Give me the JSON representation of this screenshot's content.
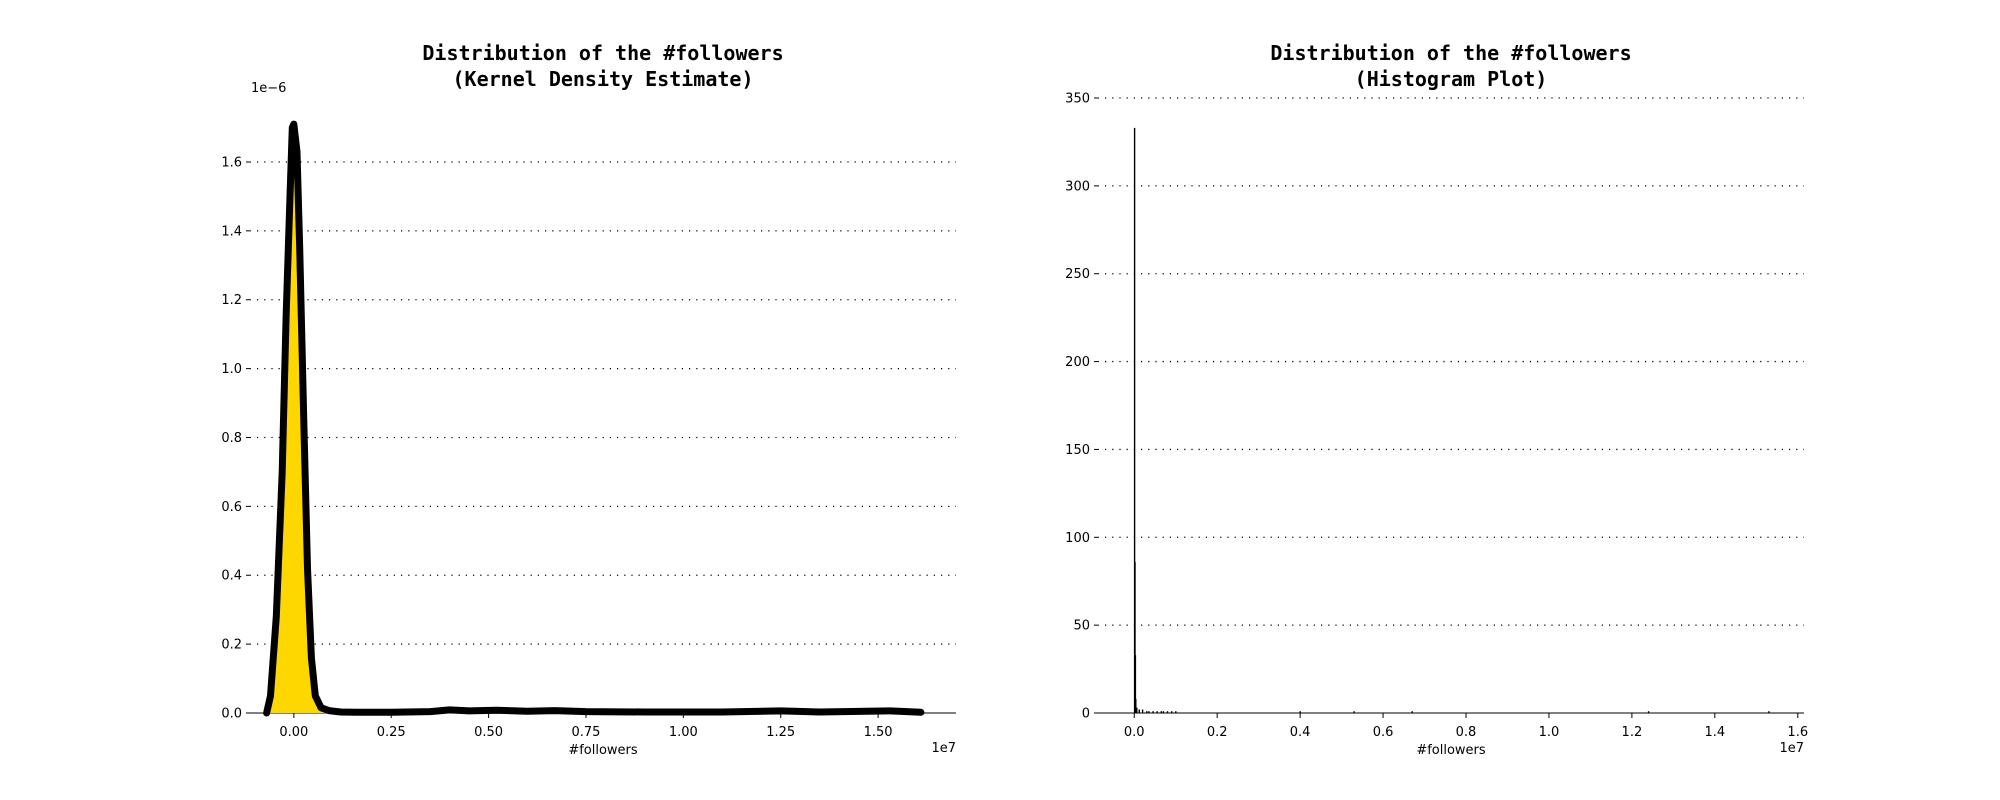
{
  "chart_data": [
    {
      "type": "area",
      "title_line1": "Distribution of the #followers",
      "title_line2": "(Kernel Density Estimate)",
      "xlabel": "#followers",
      "x_scale_label": "1e7",
      "y_scale_label": "1e−6",
      "xlim": [
        -1100000,
        17000000
      ],
      "ylim": [
        0,
        1.78e-06
      ],
      "x_ticks": [
        0,
        2500000,
        5000000,
        7500000,
        10000000,
        12500000,
        15000000
      ],
      "x_tick_labels": [
        "0.00",
        "0.25",
        "0.50",
        "0.75",
        "1.00",
        "1.25",
        "1.50"
      ],
      "y_ticks": [
        0,
        2e-07,
        4e-07,
        6e-07,
        8e-07,
        1e-06,
        1.2e-06,
        1.4e-06,
        1.6e-06
      ],
      "y_tick_labels": [
        "0.0",
        "0.2",
        "0.4",
        "0.6",
        "0.8",
        "1.0",
        "1.2",
        "1.4",
        "1.6"
      ],
      "grid": "y dotted",
      "fill_color": "#FFD700",
      "line_color": "#000000",
      "x": [
        -700000,
        -600000,
        -450000,
        -300000,
        -200000,
        -100000,
        -40000,
        0,
        80000,
        150000,
        250000,
        350000,
        450000,
        550000,
        700000,
        900000,
        1200000,
        1600000,
        2500000,
        3500000,
        4000000,
        4500000,
        5200000,
        6000000,
        6700000,
        7500000,
        9000000,
        11000000,
        12500000,
        13500000,
        15300000,
        16100000
      ],
      "y": [
        0,
        5e-08,
        2.8e-07,
        7e-07,
        1.15e-06,
        1.5e-06,
        1.7e-06,
        1.71e-06,
        1.63e-06,
        1.35e-06,
        8.7e-07,
        4.2e-07,
        1.6e-07,
        5e-08,
        1.5e-08,
        7e-09,
        3e-09,
        2e-09,
        2e-09,
        4e-09,
        9e-09,
        6e-09,
        8e-09,
        5e-09,
        7e-09,
        4e-09,
        3e-09,
        3e-09,
        6e-09,
        3e-09,
        6e-09,
        2e-09
      ]
    },
    {
      "type": "bar",
      "title_line1": "Distribution of the #followers",
      "title_line2": "(Histogram Plot)",
      "xlabel": "#followers",
      "x_scale_label": "1e7",
      "xlim": [
        -850000,
        16150000
      ],
      "ylim": [
        0,
        350
      ],
      "x_ticks": [
        0,
        2000000,
        4000000,
        6000000,
        8000000,
        10000000,
        12000000,
        14000000,
        16000000
      ],
      "x_tick_labels": [
        "0.0",
        "0.2",
        "0.4",
        "0.6",
        "0.8",
        "1.0",
        "1.2",
        "1.4",
        "1.6"
      ],
      "y_ticks": [
        0,
        50,
        100,
        150,
        200,
        250,
        300,
        350
      ],
      "y_tick_labels": [
        "0",
        "50",
        "100",
        "150",
        "200",
        "250",
        "300",
        "350"
      ],
      "grid": "y dotted",
      "bar_color": "#000000",
      "bin_centers": [
        5000,
        15000,
        25000,
        35000,
        60000,
        120000,
        200000,
        300000,
        350000,
        450000,
        550000,
        650000,
        700000,
        800000,
        900000,
        1000000,
        4000000,
        5300000,
        6700000,
        12400000,
        15300000
      ],
      "counts": [
        333,
        86,
        33,
        8,
        3,
        2,
        2,
        1,
        1,
        1,
        1,
        1,
        1,
        1,
        1,
        1,
        1,
        1,
        1,
        1,
        1
      ]
    }
  ]
}
